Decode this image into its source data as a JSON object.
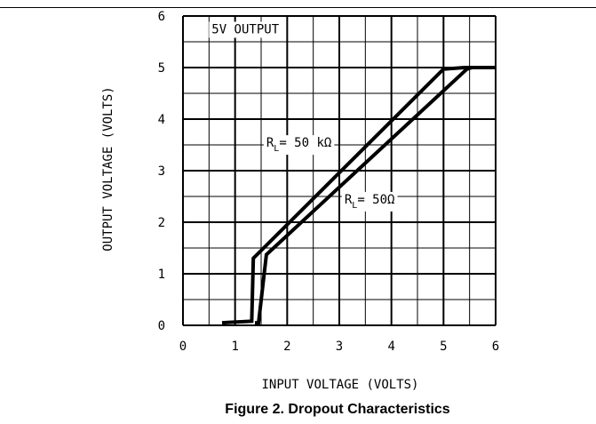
{
  "figure": {
    "caption": "Figure 2. Dropout Characteristics"
  },
  "chart_data": {
    "type": "line",
    "xlabel": "INPUT VOLTAGE (VOLTS)",
    "ylabel": "OUTPUT VOLTAGE (VOLTS)",
    "xlim": [
      0,
      6
    ],
    "ylim": [
      0,
      6
    ],
    "x_ticks": [
      "0",
      "1",
      "2",
      "3",
      "4",
      "5",
      "6"
    ],
    "y_ticks": [
      "0",
      "1",
      "2",
      "3",
      "4",
      "5",
      "6"
    ],
    "grid": true,
    "minor_grid_divisions": 2,
    "annotations": [
      {
        "text": "5V OUTPUT",
        "x": 0.55,
        "y": 5.75
      },
      {
        "text": "R",
        "sub": "L",
        "suffix": "= 50 kΩ",
        "x": 1.6,
        "y": 3.55
      },
      {
        "text": "R",
        "sub": "L",
        "suffix": "= 50Ω",
        "x": 3.1,
        "y": 2.45
      }
    ],
    "series": [
      {
        "name": "RL = 50 kΩ",
        "points": [
          [
            0.75,
            0.05
          ],
          [
            1.32,
            0.08
          ],
          [
            1.35,
            1.3
          ],
          [
            5.0,
            4.97
          ],
          [
            5.4,
            5.0
          ],
          [
            6.0,
            5.0
          ]
        ]
      },
      {
        "name": "RL = 50Ω",
        "points": [
          [
            1.38,
            0.05
          ],
          [
            1.45,
            0.05
          ],
          [
            1.6,
            1.37
          ],
          [
            5.45,
            4.97
          ],
          [
            5.55,
            5.0
          ],
          [
            6.0,
            5.0
          ]
        ]
      }
    ],
    "colors": {
      "line": "#000000",
      "grid": "#000000"
    }
  }
}
